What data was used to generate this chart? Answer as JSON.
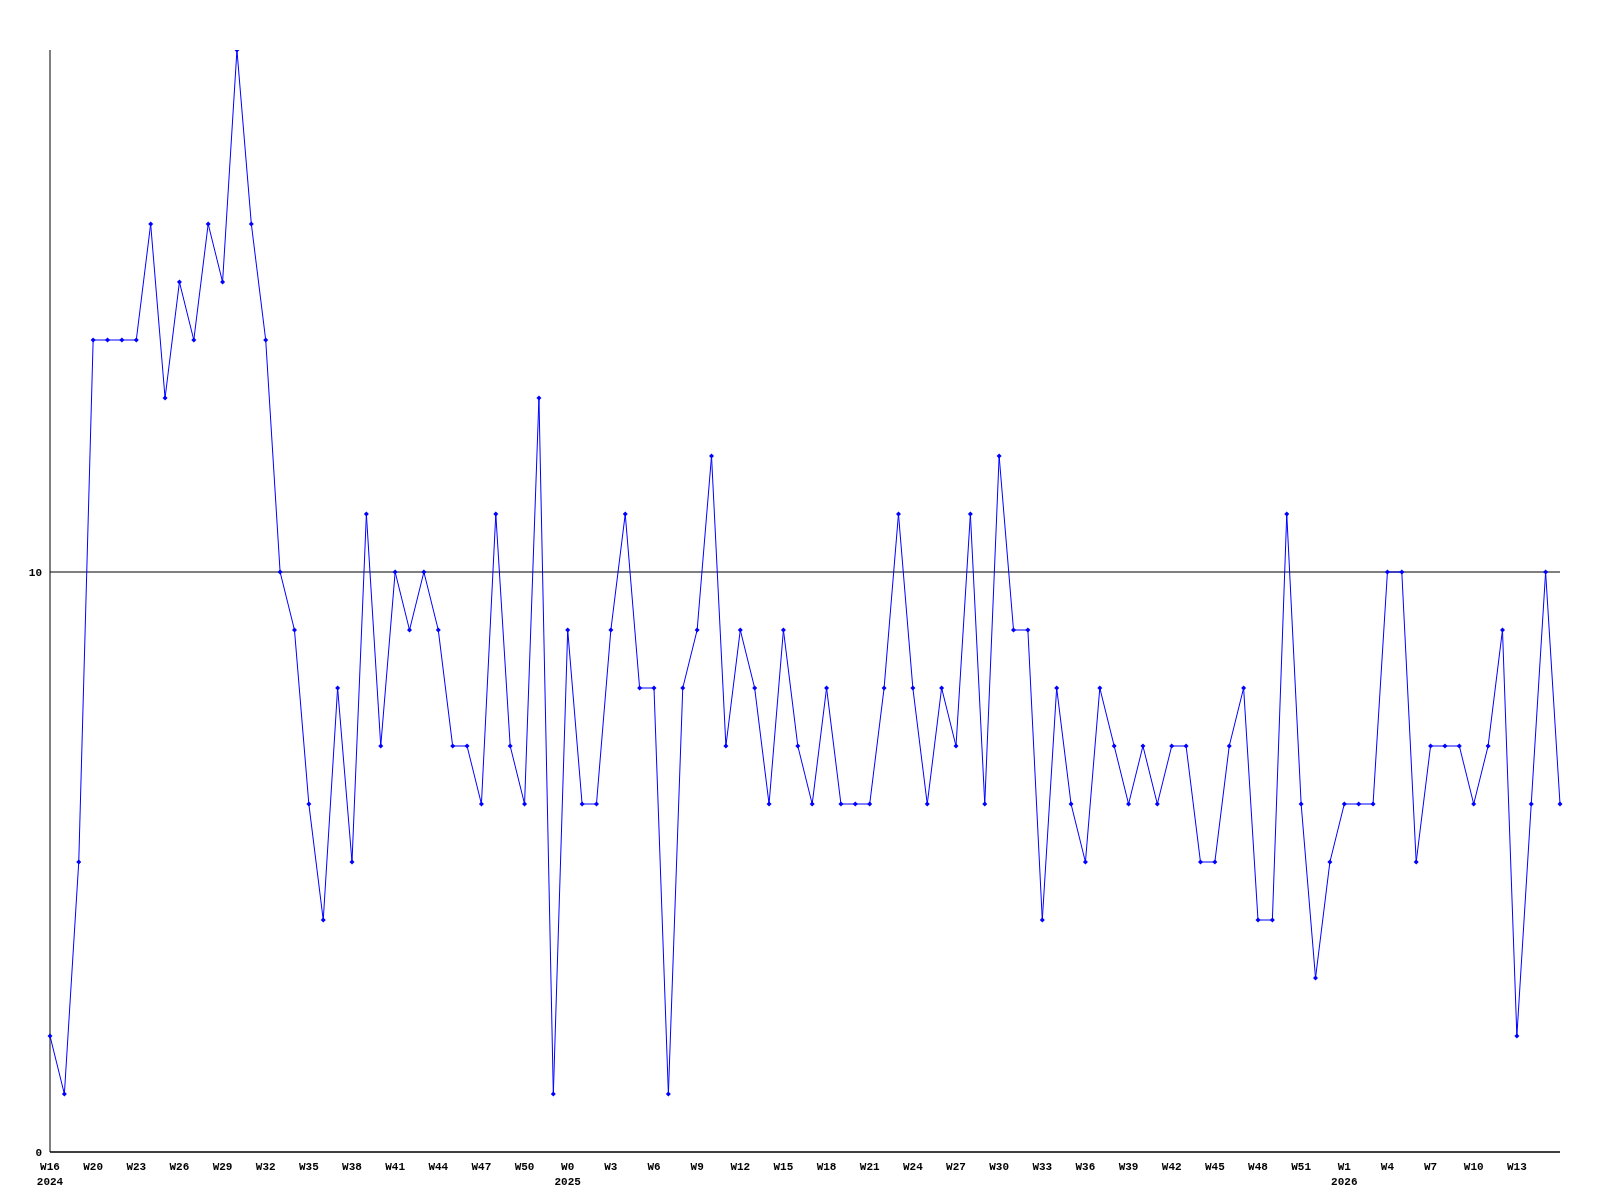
{
  "chart_data": {
    "type": "line",
    "categories": [
      "W16\n2024",
      null,
      null,
      "W20",
      null,
      null,
      "W23",
      null,
      null,
      "W26",
      null,
      null,
      "W29",
      null,
      null,
      "W32",
      null,
      null,
      "W35",
      null,
      null,
      "W38",
      null,
      null,
      "W41",
      null,
      null,
      "W44",
      null,
      null,
      "W47",
      null,
      null,
      "W50",
      null,
      null,
      "W0\n2025",
      null,
      null,
      "W3",
      null,
      null,
      "W6",
      null,
      null,
      "W9",
      null,
      null,
      "W12",
      null,
      null,
      "W15",
      null,
      null,
      "W18",
      null,
      null,
      "W21",
      null,
      null,
      "W24",
      null,
      null,
      "W27",
      null,
      null,
      "W30",
      null,
      null,
      "W33",
      null,
      null,
      "W36",
      null,
      null,
      "W39",
      null,
      null,
      "W42",
      null,
      null,
      "W45",
      null,
      null,
      "W48",
      null,
      null,
      "W51",
      null,
      null,
      "W1\n2026",
      null,
      null,
      "W4",
      null,
      null,
      "W7",
      null,
      null,
      "W10",
      null,
      null,
      "W13",
      null,
      null,
      null
    ],
    "series": [
      {
        "color": "#0000ff",
        "values": [
          2,
          1,
          5,
          14,
          14,
          14,
          14,
          16,
          13,
          15,
          14,
          16,
          15,
          19,
          16,
          14,
          10,
          9,
          6,
          4,
          8,
          5,
          11,
          7,
          10,
          9,
          10,
          9,
          7,
          7,
          6,
          11,
          7,
          6,
          13,
          1,
          9,
          6,
          6,
          9,
          11,
          8,
          8,
          1,
          8,
          9,
          12,
          7,
          9,
          8,
          6,
          9,
          7,
          6,
          8,
          6,
          6,
          6,
          8,
          11,
          8,
          6,
          8,
          7,
          11,
          6,
          12,
          9,
          9,
          4,
          8,
          6,
          5,
          8,
          7,
          6,
          7,
          6,
          7,
          7,
          5,
          5,
          7,
          8,
          4,
          4,
          11,
          6,
          3,
          5,
          6,
          6,
          6,
          10,
          10,
          5,
          7,
          7,
          7,
          6,
          7,
          9,
          2,
          6,
          10,
          6
        ]
      }
    ],
    "ylim": [
      0,
      19
    ],
    "yticks": [
      0,
      10
    ],
    "grid": "y",
    "marker": "diamond",
    "line_style": "solid"
  }
}
